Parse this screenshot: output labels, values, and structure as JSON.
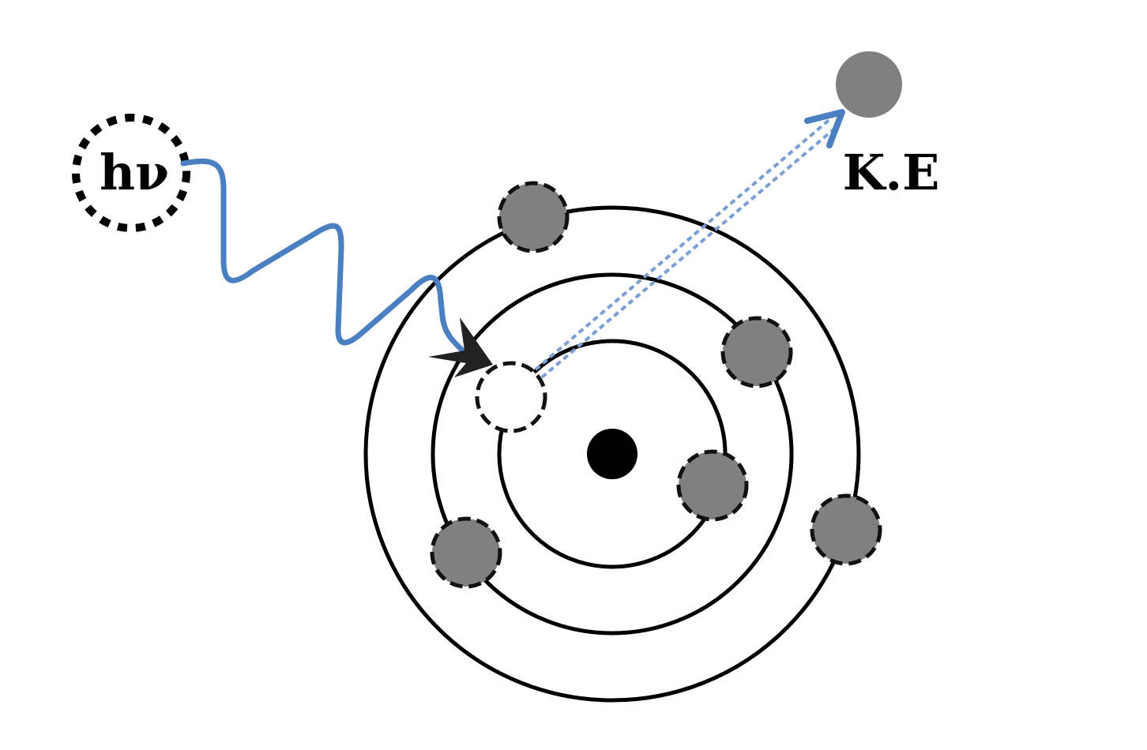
{
  "labels": {
    "photon": "hν",
    "kinetic_energy": "K.E"
  },
  "colors": {
    "background": "#ffffff",
    "orbit_stroke": "#000000",
    "nucleus": "#000000",
    "electron_fill": "#808080",
    "electron_dashed_outline": "#111111",
    "photon_wave": "#4a7fc1",
    "ejection_path": "#7a9fd4",
    "impact_arrowhead": "#222222"
  },
  "icons": {
    "photon": "photon-circle-icon",
    "electron": "electron-icon",
    "nucleus": "nucleus-icon",
    "vacancy": "electron-vacancy-icon",
    "ejected_electron": "ejected-electron-icon"
  }
}
